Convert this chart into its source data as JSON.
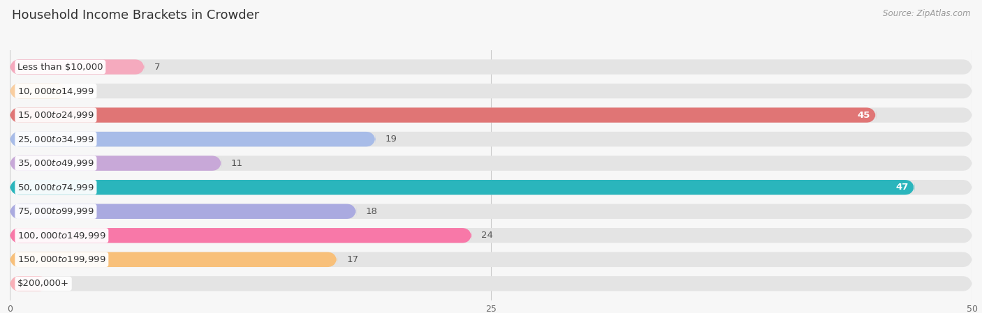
{
  "title": "Household Income Brackets in Crowder",
  "source": "Source: ZipAtlas.com",
  "categories": [
    "Less than $10,000",
    "$10,000 to $14,999",
    "$15,000 to $24,999",
    "$25,000 to $34,999",
    "$35,000 to $49,999",
    "$50,000 to $74,999",
    "$75,000 to $99,999",
    "$100,000 to $149,999",
    "$150,000 to $199,999",
    "$200,000+"
  ],
  "values": [
    7,
    3,
    45,
    19,
    11,
    47,
    18,
    24,
    17,
    2
  ],
  "bar_colors": [
    "#f5aabe",
    "#f9cea0",
    "#e07575",
    "#a8bce8",
    "#c8a8d8",
    "#2ab5bc",
    "#aaaae0",
    "#f878a8",
    "#f8c07a",
    "#f8b0b8"
  ],
  "background_color": "#f7f7f7",
  "bar_background_color": "#e4e4e4",
  "xlim": [
    0,
    50
  ],
  "xticks": [
    0,
    25,
    50
  ],
  "title_fontsize": 13,
  "label_fontsize": 9.5,
  "value_fontsize": 9.5,
  "tick_fontsize": 9,
  "source_fontsize": 8.5
}
